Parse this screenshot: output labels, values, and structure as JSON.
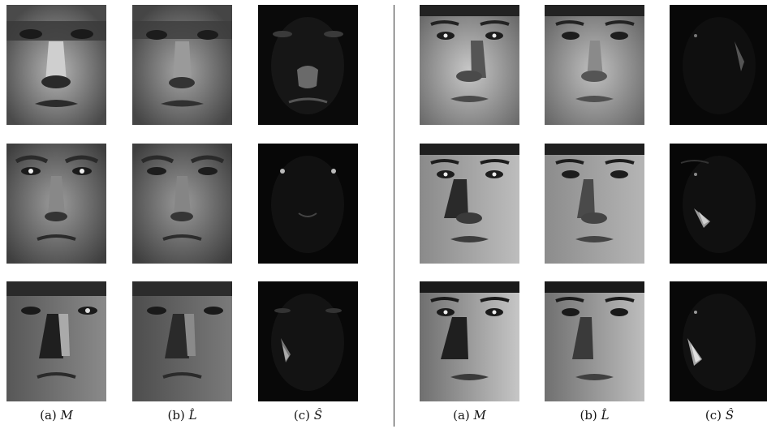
{
  "captions": {
    "left": {
      "a": "(a)",
      "a_sym": "M",
      "b": "(b)",
      "b_sym": "L̂",
      "c": "(c)",
      "c_sym": "Ŝ"
    },
    "right": {
      "a": "(a)",
      "a_sym": "M",
      "b": "(b)",
      "b_sym": "L̂",
      "c": "(c)",
      "c_sym": "Ŝ"
    }
  },
  "colors": {
    "divider": "#333333",
    "background": "#ffffff"
  }
}
